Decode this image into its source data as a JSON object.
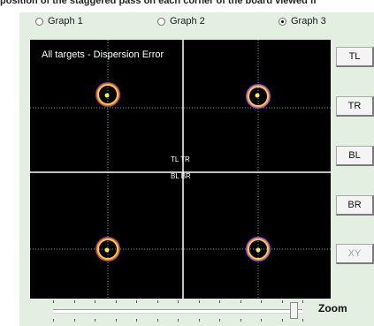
{
  "caption": "position of the staggered pass on each corner of the board viewed fr",
  "graph_selector": {
    "options": [
      {
        "label": "Graph 1",
        "checked": false
      },
      {
        "label": "Graph 2",
        "checked": false
      },
      {
        "label": "Graph 3",
        "checked": true
      }
    ]
  },
  "plot": {
    "title": "All targets - Dispersion Error",
    "center_labels": {
      "top": "TL  TR",
      "bottom": "BL  BR"
    },
    "colors": {
      "background": "#000000",
      "axis": "#ffffff",
      "grid": "#4fb6a4"
    }
  },
  "side_buttons": [
    {
      "label": "TL",
      "enabled": true
    },
    {
      "label": "TR",
      "enabled": true
    },
    {
      "label": "BL",
      "enabled": true
    },
    {
      "label": "BR",
      "enabled": true
    },
    {
      "label": "XY",
      "enabled": false
    }
  ],
  "zoom": {
    "label": "Zoom",
    "value": 0.98
  }
}
